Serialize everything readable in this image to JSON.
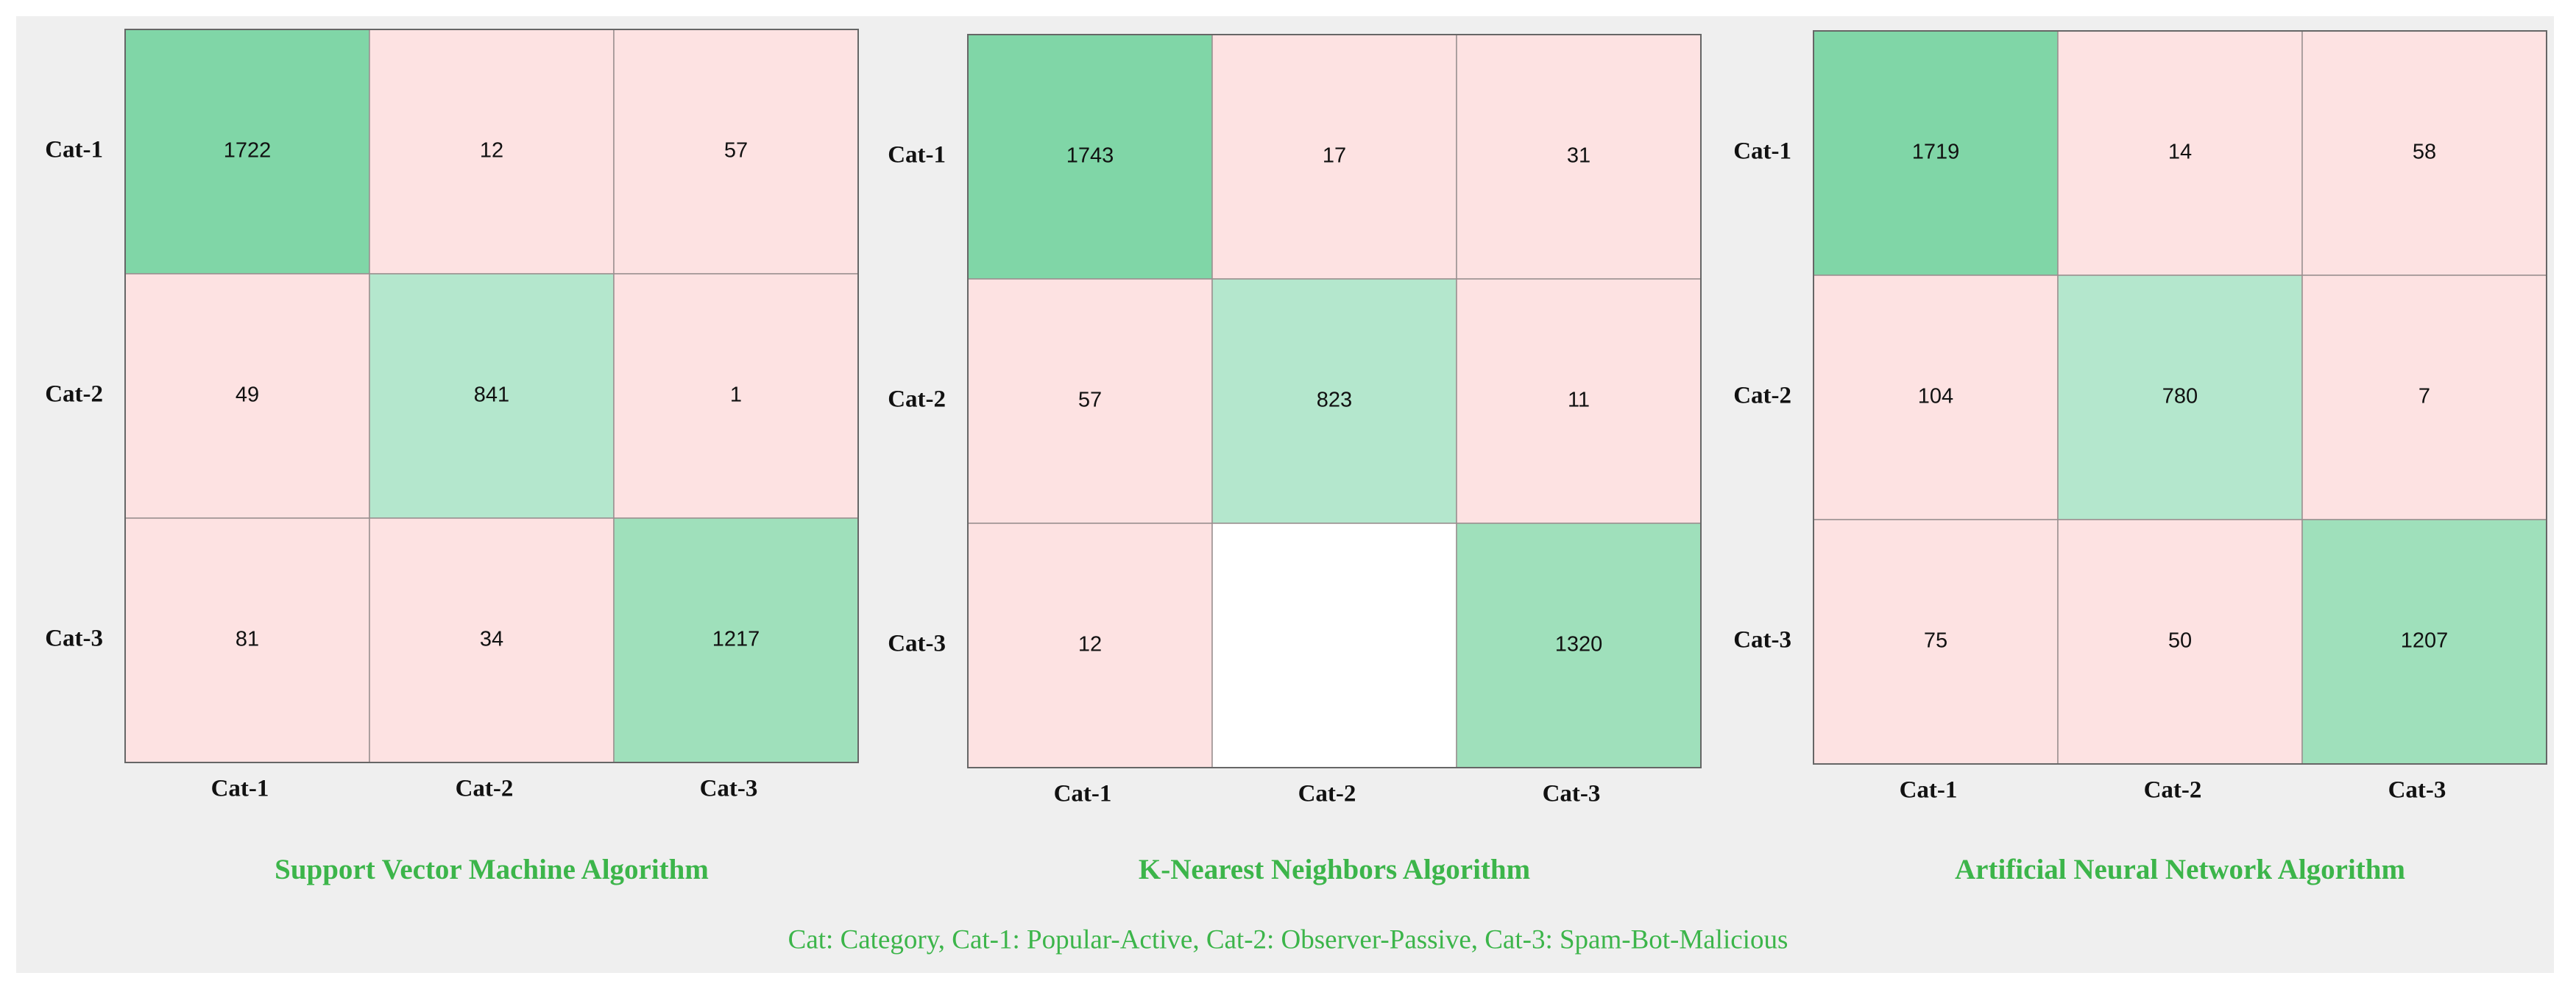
{
  "chart_data": [
    {
      "type": "heatmap",
      "title": "Support Vector Machine Algorithm",
      "x_categories": [
        "Cat-1",
        "Cat-2",
        "Cat-3"
      ],
      "y_categories": [
        "Cat-1",
        "Cat-2",
        "Cat-3"
      ],
      "values": [
        [
          1722,
          12,
          57
        ],
        [
          49,
          841,
          1
        ],
        [
          81,
          34,
          1217
        ]
      ],
      "colors": [
        [
          "#80d6a7",
          "#fde2e2",
          "#fde2e2"
        ],
        [
          "#fde2e2",
          "#b4e7cd",
          "#fde2e2"
        ],
        [
          "#fde2e2",
          "#fde2e2",
          "#9fe0bb"
        ]
      ]
    },
    {
      "type": "heatmap",
      "title": "K-Nearest Neighbors Algorithm",
      "x_categories": [
        "Cat-1",
        "Cat-2",
        "Cat-3"
      ],
      "y_categories": [
        "Cat-1",
        "Cat-2",
        "Cat-3"
      ],
      "values": [
        [
          1743,
          17,
          31
        ],
        [
          57,
          823,
          11
        ],
        [
          12,
          null,
          1320
        ]
      ],
      "colors": [
        [
          "#80d6a7",
          "#fde2e2",
          "#fde2e2"
        ],
        [
          "#fde2e2",
          "#b4e7cd",
          "#fde2e2"
        ],
        [
          "#fde2e2",
          "#ffffff",
          "#9fe0bb"
        ]
      ]
    },
    {
      "type": "heatmap",
      "title": "Artificial Neural Network Algorithm",
      "x_categories": [
        "Cat-1",
        "Cat-2",
        "Cat-3"
      ],
      "y_categories": [
        "Cat-1",
        "Cat-2",
        "Cat-3"
      ],
      "values": [
        [
          1719,
          14,
          58
        ],
        [
          104,
          780,
          7
        ],
        [
          75,
          50,
          1207
        ]
      ],
      "colors": [
        [
          "#80d6a7",
          "#fde2e2",
          "#fde2e2"
        ],
        [
          "#fde2e2",
          "#b4e7cd",
          "#fde2e2"
        ],
        [
          "#fde2e2",
          "#fde2e2",
          "#9fe0bb"
        ]
      ]
    }
  ],
  "caption": "Cat: Category, Cat-1: Popular-Active, Cat-2: Observer-Passive, Cat-3: Spam-Bot-Malicious"
}
